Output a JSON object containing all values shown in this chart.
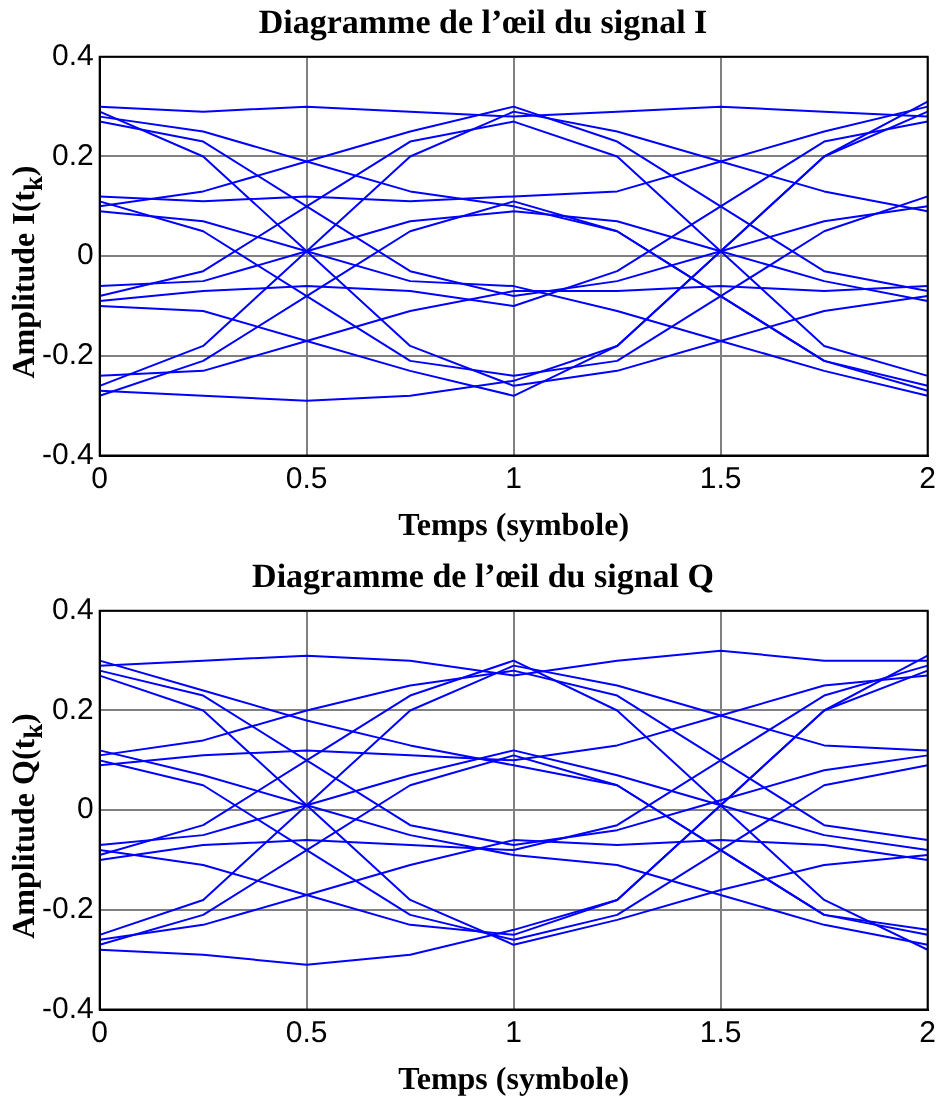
{
  "chart_data": [
    {
      "type": "line",
      "title": "Diagramme de l’œil du signal I",
      "xlabel": "Temps (symbole)",
      "ylabel": "Amplitude  I(t$_{k}$)",
      "x": [
        0,
        0.25,
        0.5,
        0.75,
        1,
        1.25,
        1.5,
        1.75,
        2
      ],
      "xlim": [
        0,
        2
      ],
      "xticks": [
        0,
        0.5,
        1,
        1.5,
        2
      ],
      "ylim": [
        -0.4,
        0.4
      ],
      "yticks": [
        -0.4,
        -0.2,
        0,
        0.2,
        0.4
      ],
      "grid": true,
      "legend": false,
      "marker": "none",
      "line_style": "solid",
      "series": [
        {
          "color": "#0000ff",
          "values": [
            0.3,
            0.29,
            0.3,
            0.29,
            0.28,
            0.29,
            0.3,
            0.29,
            0.28
          ]
        },
        {
          "color": "#0000ff",
          "values": [
            0.28,
            0.25,
            0.19,
            0.13,
            0.1,
            0.05,
            -0.08,
            -0.21,
            -0.26
          ]
        },
        {
          "color": "#0000ff",
          "values": [
            0.27,
            0.23,
            0.1,
            -0.03,
            -0.08,
            -0.05,
            0.01,
            0.07,
            0.1
          ]
        },
        {
          "color": "#0000ff",
          "values": [
            0.29,
            0.2,
            0.01,
            -0.18,
            -0.26,
            -0.23,
            -0.17,
            -0.11,
            -0.08
          ]
        },
        {
          "color": "#0000ff",
          "values": [
            0.1,
            0.13,
            0.19,
            0.25,
            0.3,
            0.23,
            0.1,
            -0.03,
            -0.07
          ]
        },
        {
          "color": "#0000ff",
          "values": [
            0.12,
            0.11,
            0.12,
            0.11,
            0.12,
            0.13,
            0.19,
            0.25,
            0.3
          ]
        },
        {
          "color": "#0000ff",
          "values": [
            0.09,
            0.07,
            0.01,
            -0.05,
            -0.06,
            -0.11,
            -0.17,
            -0.23,
            -0.28
          ]
        },
        {
          "color": "#0000ff",
          "values": [
            0.11,
            0.05,
            -0.08,
            -0.21,
            -0.24,
            -0.21,
            -0.08,
            0.05,
            0.12
          ]
        },
        {
          "color": "#0000ff",
          "values": [
            -0.08,
            -0.03,
            0.1,
            0.23,
            0.27,
            0.2,
            0.01,
            -0.18,
            -0.24
          ]
        },
        {
          "color": "#0000ff",
          "values": [
            -0.06,
            -0.05,
            0.01,
            0.07,
            0.09,
            0.07,
            0.01,
            -0.05,
            -0.09
          ]
        },
        {
          "color": "#0000ff",
          "values": [
            -0.09,
            -0.07,
            -0.06,
            -0.07,
            -0.1,
            -0.03,
            0.1,
            0.23,
            0.27
          ]
        },
        {
          "color": "#0000ff",
          "values": [
            -0.1,
            -0.11,
            -0.17,
            -0.23,
            -0.28,
            -0.18,
            0.01,
            0.2,
            0.31
          ]
        },
        {
          "color": "#0000ff",
          "values": [
            -0.26,
            -0.18,
            0.01,
            0.2,
            0.29,
            0.25,
            0.19,
            0.13,
            0.09
          ]
        },
        {
          "color": "#0000ff",
          "values": [
            -0.28,
            -0.21,
            -0.08,
            0.05,
            0.11,
            0.05,
            -0.08,
            -0.21,
            -0.27
          ]
        },
        {
          "color": "#0000ff",
          "values": [
            -0.24,
            -0.23,
            -0.17,
            -0.11,
            -0.07,
            -0.07,
            -0.06,
            -0.07,
            -0.06
          ]
        },
        {
          "color": "#0000ff",
          "values": [
            -0.27,
            -0.28,
            -0.29,
            -0.28,
            -0.25,
            -0.18,
            0.01,
            0.2,
            0.29
          ]
        }
      ]
    },
    {
      "type": "line",
      "title": "Diagramme de l’œil du signal Q",
      "xlabel": "Temps (symbole)",
      "ylabel": "Amplitude  Q(t$_{k}$)",
      "x": [
        0,
        0.25,
        0.5,
        0.75,
        1,
        1.25,
        1.5,
        1.75,
        2
      ],
      "xlim": [
        0,
        2
      ],
      "xticks": [
        0,
        0.5,
        1,
        1.5,
        2
      ],
      "ylim": [
        -0.4,
        0.4
      ],
      "yticks": [
        -0.4,
        -0.2,
        0,
        0.2,
        0.4
      ],
      "grid": true,
      "legend": false,
      "marker": "none",
      "line_style": "solid",
      "series": [
        {
          "color": "#0000ff",
          "values": [
            0.29,
            0.3,
            0.31,
            0.3,
            0.27,
            0.3,
            0.32,
            0.3,
            0.3
          ]
        },
        {
          "color": "#0000ff",
          "values": [
            0.3,
            0.24,
            0.18,
            0.13,
            0.09,
            0.05,
            -0.08,
            -0.21,
            -0.25
          ]
        },
        {
          "color": "#0000ff",
          "values": [
            0.28,
            0.23,
            0.1,
            -0.03,
            -0.07,
            -0.04,
            0.02,
            0.08,
            0.11
          ]
        },
        {
          "color": "#0000ff",
          "values": [
            0.27,
            0.2,
            0.01,
            -0.18,
            -0.27,
            -0.22,
            -0.16,
            -0.11,
            -0.09
          ]
        },
        {
          "color": "#0000ff",
          "values": [
            0.11,
            0.14,
            0.2,
            0.25,
            0.28,
            0.23,
            0.1,
            -0.03,
            -0.06
          ]
        },
        {
          "color": "#0000ff",
          "values": [
            0.09,
            0.11,
            0.12,
            0.11,
            0.1,
            0.13,
            0.19,
            0.25,
            0.27
          ]
        },
        {
          "color": "#0000ff",
          "values": [
            0.12,
            0.07,
            0.01,
            -0.05,
            -0.09,
            -0.11,
            -0.17,
            -0.23,
            -0.27
          ]
        },
        {
          "color": "#0000ff",
          "values": [
            0.1,
            0.05,
            -0.08,
            -0.21,
            -0.26,
            -0.21,
            -0.08,
            0.05,
            0.09
          ]
        },
        {
          "color": "#0000ff",
          "values": [
            -0.09,
            -0.03,
            0.1,
            0.23,
            0.3,
            0.2,
            0.01,
            -0.18,
            -0.28
          ]
        },
        {
          "color": "#0000ff",
          "values": [
            -0.07,
            -0.05,
            0.01,
            0.07,
            0.12,
            0.07,
            0.01,
            -0.05,
            -0.08
          ]
        },
        {
          "color": "#0000ff",
          "values": [
            -0.1,
            -0.07,
            -0.06,
            -0.07,
            -0.08,
            -0.03,
            0.1,
            0.23,
            0.29
          ]
        },
        {
          "color": "#0000ff",
          "values": [
            -0.08,
            -0.11,
            -0.17,
            -0.23,
            -0.25,
            -0.18,
            0.01,
            0.2,
            0.28
          ]
        },
        {
          "color": "#0000ff",
          "values": [
            -0.25,
            -0.18,
            0.01,
            0.2,
            0.29,
            0.25,
            0.19,
            0.13,
            0.12
          ]
        },
        {
          "color": "#0000ff",
          "values": [
            -0.27,
            -0.21,
            -0.08,
            0.05,
            0.11,
            0.05,
            -0.08,
            -0.21,
            -0.24
          ]
        },
        {
          "color": "#0000ff",
          "values": [
            -0.26,
            -0.23,
            -0.17,
            -0.11,
            -0.06,
            -0.07,
            -0.06,
            -0.07,
            -0.1
          ]
        },
        {
          "color": "#0000ff",
          "values": [
            -0.28,
            -0.29,
            -0.31,
            -0.29,
            -0.24,
            -0.18,
            0.01,
            0.2,
            0.31
          ]
        }
      ]
    }
  ]
}
